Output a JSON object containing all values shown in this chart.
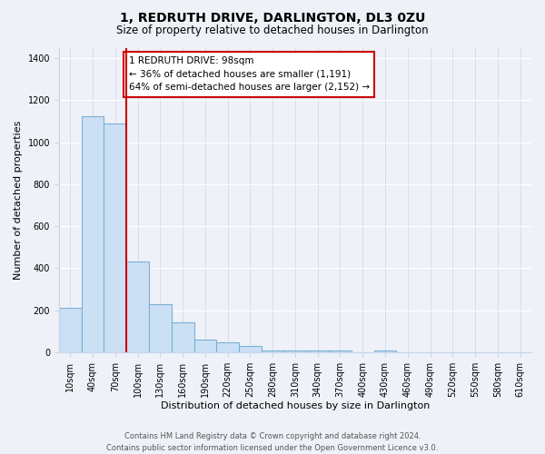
{
  "title": "1, REDRUTH DRIVE, DARLINGTON, DL3 0ZU",
  "subtitle": "Size of property relative to detached houses in Darlington",
  "xlabel": "Distribution of detached houses by size in Darlington",
  "ylabel": "Number of detached properties",
  "bar_labels": [
    "10sqm",
    "40sqm",
    "70sqm",
    "100sqm",
    "130sqm",
    "160sqm",
    "190sqm",
    "220sqm",
    "250sqm",
    "280sqm",
    "310sqm",
    "340sqm",
    "370sqm",
    "400sqm",
    "430sqm",
    "460sqm",
    "490sqm",
    "520sqm",
    "550sqm",
    "580sqm",
    "610sqm"
  ],
  "bar_values": [
    210,
    1125,
    1090,
    430,
    230,
    140,
    60,
    45,
    30,
    8,
    8,
    8,
    8,
    0,
    8,
    0,
    0,
    0,
    0,
    0,
    0
  ],
  "bar_color": "#cce0f5",
  "bar_edge_color": "#7aafd4",
  "vline_x": 2.5,
  "vline_color": "#cc0000",
  "ylim": [
    0,
    1450
  ],
  "yticks": [
    0,
    200,
    400,
    600,
    800,
    1000,
    1200,
    1400
  ],
  "annotation_title": "1 REDRUTH DRIVE: 98sqm",
  "annotation_line1": "← 36% of detached houses are smaller (1,191)",
  "annotation_line2": "64% of semi-detached houses are larger (2,152) →",
  "footer1": "Contains HM Land Registry data © Crown copyright and database right 2024.",
  "footer2": "Contains public sector information licensed under the Open Government Licence v3.0.",
  "bg_color": "#eef2f8",
  "grid_color": "#c8d4e8",
  "title_fontsize": 10,
  "subtitle_fontsize": 8.5,
  "tick_fontsize": 7,
  "label_fontsize": 8,
  "annotation_fontsize": 7.5,
  "footer_fontsize": 6
}
